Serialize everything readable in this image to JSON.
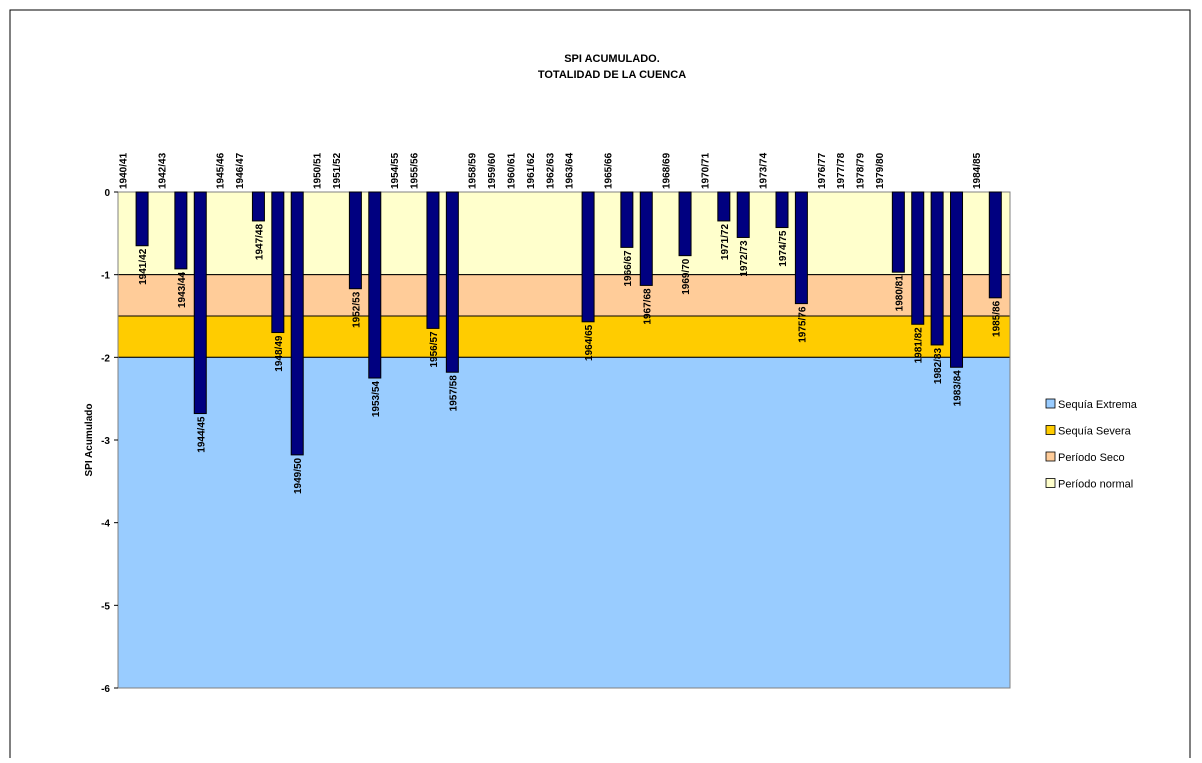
{
  "chart_data": {
    "type": "bar",
    "title": "SPI ACUMULADO.",
    "subtitle": "TOTALIDAD DE LA CUENCA",
    "y_label": "SPI Acumulado",
    "categories": [
      "1940/41",
      "1941/42",
      "1942/43",
      "1943/44",
      "1944/45",
      "1945/46",
      "1946/47",
      "1947/48",
      "1948/49",
      "1949/50",
      "1950/51",
      "1951/52",
      "1952/53",
      "1953/54",
      "1954/55",
      "1955/56",
      "1956/57",
      "1957/58",
      "1958/59",
      "1959/60",
      "1960/61",
      "1961/62",
      "1962/63",
      "1963/64",
      "1964/65",
      "1965/66",
      "1966/67",
      "1967/68",
      "1968/69",
      "1969/70",
      "1970/71",
      "1971/72",
      "1972/73",
      "1973/74",
      "1974/75",
      "1975/76",
      "1976/77",
      "1977/78",
      "1978/79",
      "1979/80",
      "1980/81",
      "1981/82",
      "1982/83",
      "1983/84",
      "1984/85",
      "1985/86"
    ],
    "values": [
      0,
      -0.65,
      0,
      -0.93,
      -2.68,
      0,
      0,
      -0.35,
      -1.7,
      -3.18,
      0,
      0,
      -1.17,
      -2.25,
      0,
      0,
      -1.65,
      -2.18,
      0,
      0,
      0,
      0,
      0,
      0,
      -1.57,
      0,
      -0.67,
      -1.13,
      0,
      -0.77,
      0,
      -0.35,
      -0.55,
      0,
      -0.43,
      -1.35,
      0,
      0,
      0,
      0,
      -0.97,
      -1.6,
      -1.85,
      -2.12,
      0,
      -1.28
    ],
    "color": "#000080",
    "bands": [
      {
        "name": "Sequía Extrema",
        "color": "#99ccff",
        "values": [
          -4
        ]
      },
      {
        "name": "Sequía Severa",
        "color": "#ffcc00",
        "values": [
          -0.5
        ]
      },
      {
        "name": "Período Seco",
        "color": "#ffcc99",
        "values": [
          -0.5
        ]
      },
      {
        "name": "Período normal",
        "color": "#ffffcc",
        "values": [
          -1
        ]
      }
    ],
    "ylim": [
      -6,
      0
    ],
    "yticks": [
      0,
      -1,
      -2,
      -3,
      -4,
      -5,
      -6
    ],
    "legend": "right"
  }
}
